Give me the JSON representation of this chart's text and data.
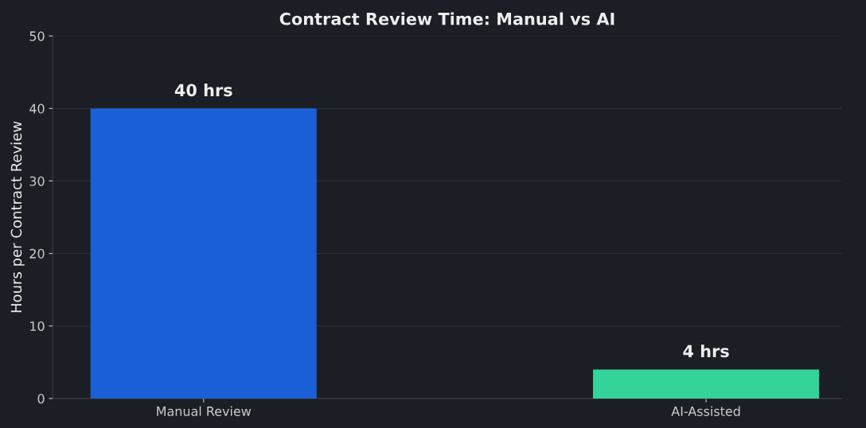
{
  "chart_data": {
    "type": "bar",
    "title": "Contract Review Time: Manual vs AI",
    "ylabel": "Hours per Contract Review",
    "categories": [
      "Manual Review",
      "AI-Assisted"
    ],
    "values": [
      40,
      4
    ],
    "colors": [
      "#1a5fd6",
      "#34d399"
    ],
    "value_labels": [
      "40 hrs",
      "4 hrs"
    ],
    "ylim": [
      0,
      50
    ],
    "yticks": [
      0,
      10,
      20,
      30,
      40,
      50
    ],
    "grid": "y"
  }
}
